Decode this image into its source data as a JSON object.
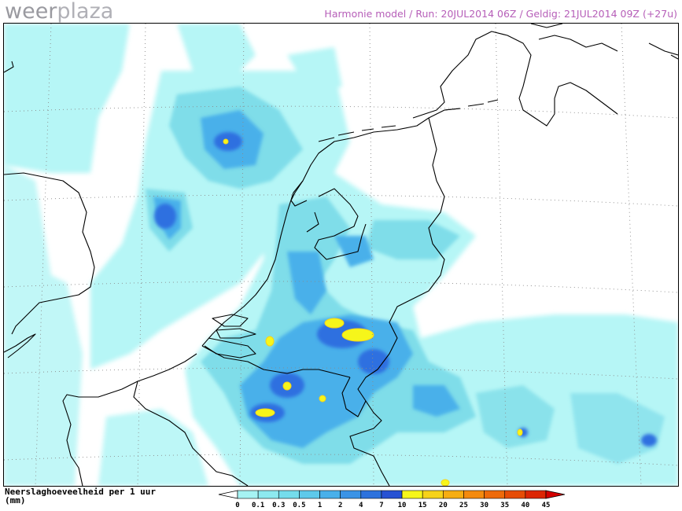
{
  "brand": {
    "part1": "weer",
    "part2": "plaza"
  },
  "header": {
    "text": "Harmonie model / Run: 20JUL2014 06Z / Geldig: 21JUL2014 09Z (+27u)"
  },
  "legend": {
    "title_line1": "Neerslaghoeveelheid per 1 uur",
    "title_line2": "(mm)",
    "levels": [
      "0",
      "0.1",
      "0.3",
      "0.5",
      "1",
      "2",
      "4",
      "7",
      "10",
      "15",
      "20",
      "25",
      "30",
      "35",
      "40",
      "45"
    ],
    "colors": [
      "#a6f3f3",
      "#8de9ef",
      "#74dcec",
      "#5ec9ea",
      "#49b0ea",
      "#3a93e6",
      "#2d72dd",
      "#2752d3",
      "#f6f61a",
      "#f6d21a",
      "#f6ad12",
      "#f48a0e",
      "#ee6a0a",
      "#e64c06",
      "#dc2604"
    ]
  },
  "colors": {
    "precip_light": "#b6f6f6",
    "precip_mid": "#7fdde9",
    "precip_heavy": "#49b0ea",
    "precip_very_heavy": "#2d6fe0",
    "precip_extreme": "#f6f61a",
    "coastline": "#000000",
    "header_text": "#b65eb8"
  }
}
